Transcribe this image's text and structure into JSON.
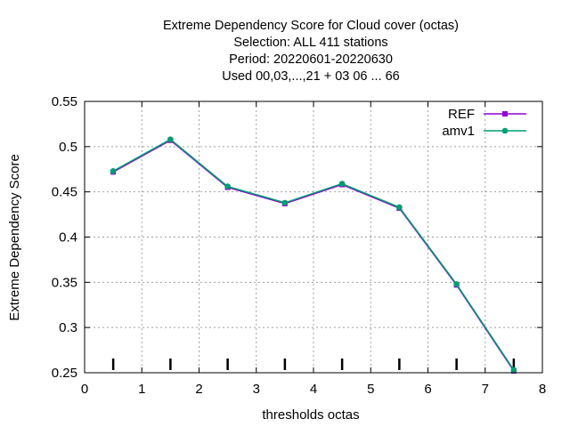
{
  "chart_data": {
    "type": "line",
    "title_lines": [
      "Extreme Dependency Score  for Cloud cover (octas)",
      "Selection: ALL    411 stations",
      "Period: 20220601-20220630",
      "Used  00,03,...,21  + 03 06 ... 66"
    ],
    "xlabel": "thresholds octas",
    "ylabel": "Extreme Dependency Score",
    "xlim": [
      0,
      8
    ],
    "ylim": [
      0.25,
      0.55
    ],
    "xticks": [
      0,
      1,
      2,
      3,
      4,
      5,
      6,
      7,
      8
    ],
    "yticks": [
      0.25,
      0.3,
      0.35,
      0.4,
      0.45,
      0.5,
      0.55
    ],
    "xtick_labels": [
      "0",
      "1",
      "2",
      "3",
      "4",
      "5",
      "6",
      "7",
      "8"
    ],
    "ytick_labels": [
      "0.25",
      "0.3",
      "0.35",
      "0.4",
      "0.45",
      "0.5",
      "0.55"
    ],
    "grid": true,
    "legend_position": "top-right",
    "x": [
      0.5,
      1.5,
      2.5,
      3.5,
      4.5,
      5.5,
      6.5,
      7.5
    ],
    "series": [
      {
        "name": "REF",
        "color": "#9400d3",
        "marker": "square",
        "values": [
          0.472,
          0.507,
          0.455,
          0.437,
          0.458,
          0.432,
          0.347,
          0.252
        ]
      },
      {
        "name": "amv1",
        "color": "#009e73",
        "marker": "circle",
        "values": [
          0.473,
          0.508,
          0.456,
          0.438,
          0.459,
          0.433,
          0.348,
          0.253
        ]
      }
    ],
    "sample_markers_x": [
      0.5,
      1.5,
      2.5,
      3.5,
      4.5,
      5.5,
      6.5,
      7.5
    ]
  }
}
